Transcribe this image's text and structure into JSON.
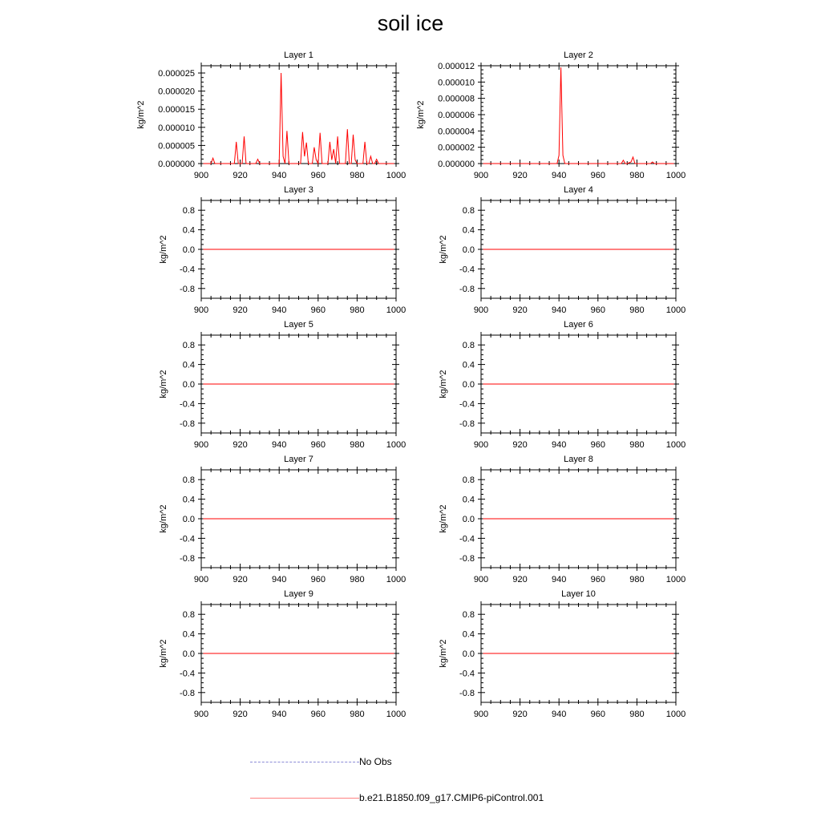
{
  "title": "soil ice",
  "legend": {
    "obs_label": "No Obs",
    "model_label": "b.e21.B1850.f09_g17.CMIP6-piControl.001",
    "obs_color": "#7a7ad4",
    "model_color": "#ff0000"
  },
  "chart_data": [
    {
      "type": "line",
      "title": "Layer 1",
      "ylabel": "kg/m^2",
      "xlim": [
        900,
        1000
      ],
      "ylim": [
        0,
        2.7e-05
      ],
      "xticks": [
        "900",
        "920",
        "940",
        "960",
        "980",
        "1000"
      ],
      "yticks": [
        "0.000000",
        "0.000005",
        "0.000010",
        "0.000015",
        "0.000020",
        "0.000025"
      ],
      "series": [
        {
          "x": [
            901,
            902,
            903,
            904,
            905,
            906,
            907,
            908,
            909,
            910,
            911,
            912,
            913,
            914,
            915,
            916,
            917,
            918,
            919,
            920,
            921,
            922,
            923,
            924,
            925,
            926,
            927,
            928,
            929,
            930,
            931,
            932,
            933,
            934,
            935,
            936,
            937,
            938,
            939,
            940,
            941,
            942,
            943,
            944,
            945,
            946,
            947,
            948,
            949,
            950,
            951,
            952,
            953,
            954,
            955,
            956,
            957,
            958,
            959,
            960,
            961,
            962,
            963,
            964,
            965,
            966,
            967,
            968,
            969,
            970,
            971,
            972,
            973,
            974,
            975,
            976,
            977,
            978,
            979,
            980,
            981,
            982,
            983,
            984,
            985,
            986,
            987,
            988,
            989,
            990,
            991,
            992,
            993,
            994,
            995,
            996,
            997,
            998,
            999
          ],
          "values": [
            0,
            0,
            0,
            0,
            0,
            1.5e-06,
            0,
            0,
            0,
            0,
            0,
            0,
            0,
            0,
            0,
            0,
            0,
            6e-06,
            0,
            0,
            0,
            7.5e-06,
            0,
            0,
            0,
            0,
            0,
            0,
            1.2e-06,
            0,
            0,
            0,
            0,
            0,
            0,
            0,
            0,
            0,
            0,
            0,
            2.5e-05,
            2e-06,
            0,
            9e-06,
            0,
            0,
            0,
            0,
            0,
            0,
            0,
            8.7e-06,
            2e-06,
            5.8e-06,
            0,
            0,
            0,
            4.5e-06,
            1e-06,
            0,
            8.5e-06,
            0,
            0,
            0,
            0,
            6e-06,
            1e-06,
            4e-06,
            0,
            7.5e-06,
            0,
            0,
            0,
            0,
            9.5e-06,
            0,
            0,
            8e-06,
            1e-06,
            0,
            0,
            0,
            0,
            6e-06,
            0,
            0,
            2e-06,
            0,
            0,
            1.2e-06,
            0,
            0,
            0,
            0,
            0,
            0,
            0,
            0,
            0
          ]
        }
      ]
    },
    {
      "type": "line",
      "title": "Layer 2",
      "ylabel": "kg/m^2",
      "xlim": [
        900,
        1000
      ],
      "ylim": [
        0,
        1.2e-05
      ],
      "xticks": [
        "900",
        "920",
        "940",
        "960",
        "980",
        "1000"
      ],
      "yticks": [
        "0.000000",
        "0.000002",
        "0.000004",
        "0.000006",
        "0.000008",
        "0.000010",
        "0.000012"
      ],
      "series": [
        {
          "x": [
            901,
            910,
            920,
            930,
            939,
            940,
            941,
            942,
            943,
            950,
            960,
            970,
            972,
            973,
            974,
            975,
            977,
            978,
            979,
            980,
            985,
            987,
            988,
            989,
            990,
            999
          ],
          "values": [
            0,
            0,
            0,
            0,
            0,
            1e-06,
            1.18e-05,
            1e-06,
            0,
            0,
            0,
            0,
            0,
            4e-07,
            0,
            0,
            2e-07,
            8e-07,
            0,
            0,
            0,
            0,
            2e-07,
            0,
            0,
            0
          ]
        }
      ]
    },
    {
      "type": "line",
      "title": "Layer 3",
      "ylabel": "kg/m^2",
      "xlim": [
        900,
        1000
      ],
      "ylim": [
        -1,
        1
      ],
      "xticks": [
        "900",
        "920",
        "940",
        "960",
        "980",
        "1000"
      ],
      "yticks": [
        "-0.8",
        "-0.4",
        "0.0",
        "0.4",
        "0.8"
      ],
      "series": [
        {
          "x": [
            901,
            999
          ],
          "values": [
            0,
            0
          ]
        }
      ]
    },
    {
      "type": "line",
      "title": "Layer 4",
      "ylabel": "kg/m^2",
      "xlim": [
        900,
        1000
      ],
      "ylim": [
        -1,
        1
      ],
      "xticks": [
        "900",
        "920",
        "940",
        "960",
        "980",
        "1000"
      ],
      "yticks": [
        "-0.8",
        "-0.4",
        "0.0",
        "0.4",
        "0.8"
      ],
      "series": [
        {
          "x": [
            901,
            999
          ],
          "values": [
            0,
            0
          ]
        }
      ]
    },
    {
      "type": "line",
      "title": "Layer 5",
      "ylabel": "kg/m^2",
      "xlim": [
        900,
        1000
      ],
      "ylim": [
        -1,
        1
      ],
      "xticks": [
        "900",
        "920",
        "940",
        "960",
        "980",
        "1000"
      ],
      "yticks": [
        "-0.8",
        "-0.4",
        "0.0",
        "0.4",
        "0.8"
      ],
      "series": [
        {
          "x": [
            901,
            999
          ],
          "values": [
            0,
            0
          ]
        }
      ]
    },
    {
      "type": "line",
      "title": "Layer 6",
      "ylabel": "kg/m^2",
      "xlim": [
        900,
        1000
      ],
      "ylim": [
        -1,
        1
      ],
      "xticks": [
        "900",
        "920",
        "940",
        "960",
        "980",
        "1000"
      ],
      "yticks": [
        "-0.8",
        "-0.4",
        "0.0",
        "0.4",
        "0.8"
      ],
      "series": [
        {
          "x": [
            901,
            999
          ],
          "values": [
            0,
            0
          ]
        }
      ]
    },
    {
      "type": "line",
      "title": "Layer 7",
      "ylabel": "kg/m^2",
      "xlim": [
        900,
        1000
      ],
      "ylim": [
        -1,
        1
      ],
      "xticks": [
        "900",
        "920",
        "940",
        "960",
        "980",
        "1000"
      ],
      "yticks": [
        "-0.8",
        "-0.4",
        "0.0",
        "0.4",
        "0.8"
      ],
      "series": [
        {
          "x": [
            901,
            999
          ],
          "values": [
            0,
            0
          ]
        }
      ]
    },
    {
      "type": "line",
      "title": "Layer 8",
      "ylabel": "kg/m^2",
      "xlim": [
        900,
        1000
      ],
      "ylim": [
        -1,
        1
      ],
      "xticks": [
        "900",
        "920",
        "940",
        "960",
        "980",
        "1000"
      ],
      "yticks": [
        "-0.8",
        "-0.4",
        "0.0",
        "0.4",
        "0.8"
      ],
      "series": [
        {
          "x": [
            901,
            999
          ],
          "values": [
            0,
            0
          ]
        }
      ]
    },
    {
      "type": "line",
      "title": "Layer 9",
      "ylabel": "kg/m^2",
      "xlim": [
        900,
        1000
      ],
      "ylim": [
        -1,
        1
      ],
      "xticks": [
        "900",
        "920",
        "940",
        "960",
        "980",
        "1000"
      ],
      "yticks": [
        "-0.8",
        "-0.4",
        "0.0",
        "0.4",
        "0.8"
      ],
      "series": [
        {
          "x": [
            901,
            999
          ],
          "values": [
            0,
            0
          ]
        }
      ]
    },
    {
      "type": "line",
      "title": "Layer 10",
      "ylabel": "kg/m^2",
      "xlim": [
        900,
        1000
      ],
      "ylim": [
        -1,
        1
      ],
      "xticks": [
        "900",
        "920",
        "940",
        "960",
        "980",
        "1000"
      ],
      "yticks": [
        "-0.8",
        "-0.4",
        "0.0",
        "0.4",
        "0.8"
      ],
      "series": [
        {
          "x": [
            901,
            999
          ],
          "values": [
            0,
            0
          ]
        }
      ]
    }
  ]
}
